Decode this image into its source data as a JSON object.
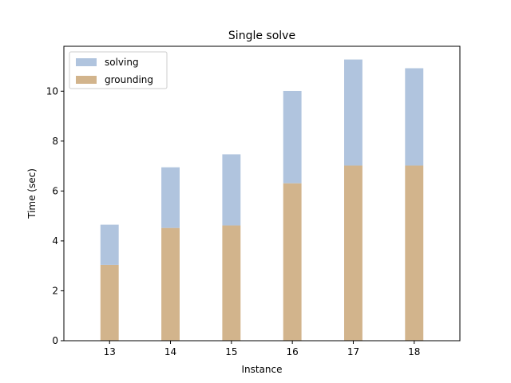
{
  "chart_data": {
    "type": "bar",
    "stacked": true,
    "title": "Single solve",
    "xlabel": "Instance",
    "ylabel": "Time (sec)",
    "categories": [
      "13",
      "14",
      "15",
      "16",
      "17",
      "18"
    ],
    "series": [
      {
        "name": "grounding",
        "values": [
          3.04,
          4.52,
          4.62,
          6.31,
          7.02,
          7.02
        ],
        "color": "#d2b48c"
      },
      {
        "name": "solving",
        "values": [
          1.61,
          2.43,
          2.85,
          3.7,
          4.25,
          3.9
        ],
        "color": "#b0c4de"
      }
    ],
    "totals": [
      4.65,
      6.95,
      7.47,
      10.01,
      11.27,
      10.92
    ],
    "ylim": [
      0,
      11.8
    ],
    "yticks": [
      0,
      2,
      4,
      6,
      8,
      10
    ],
    "legend": {
      "position": "top-left",
      "entries": [
        "solving",
        "grounding"
      ]
    },
    "grid": false
  }
}
